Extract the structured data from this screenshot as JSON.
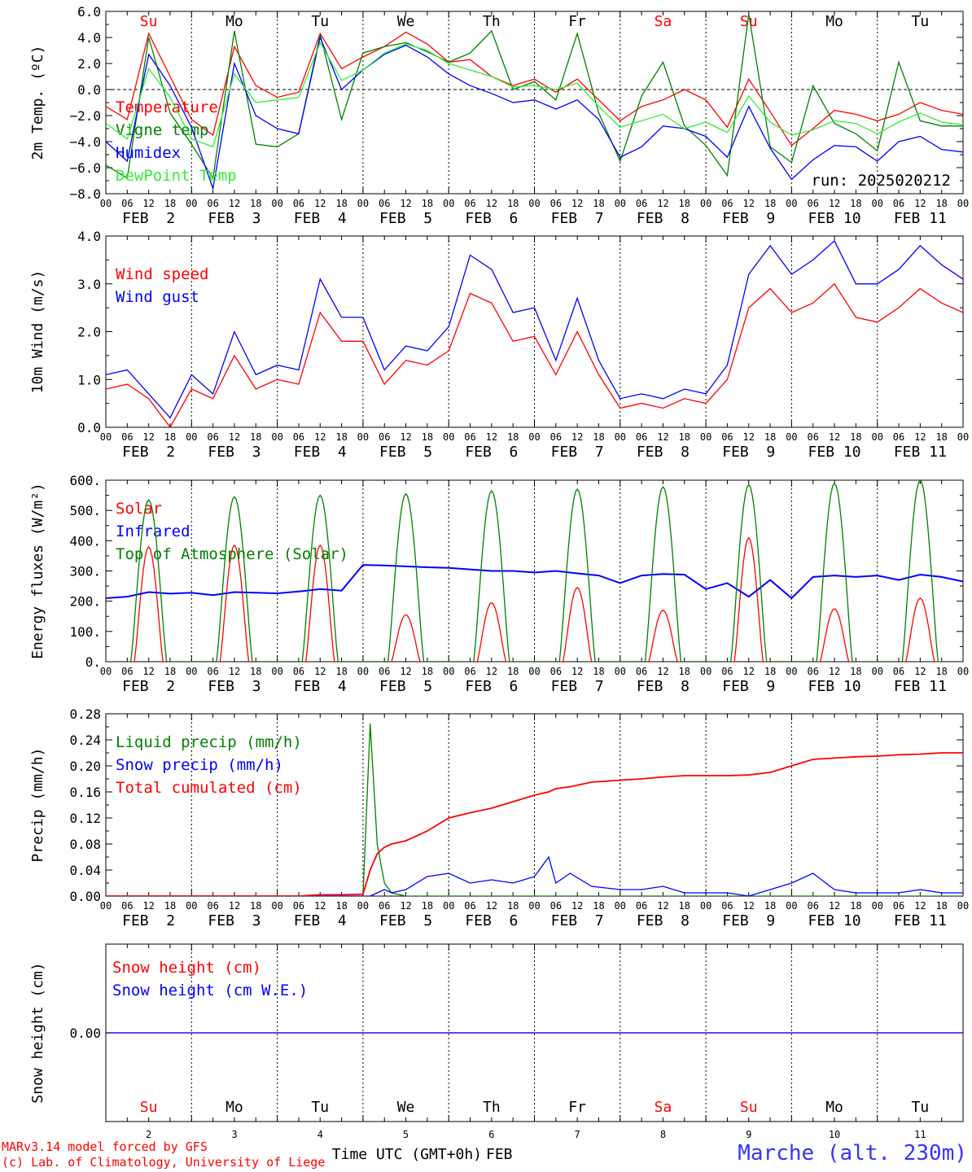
{
  "colors": {
    "red": "#ff0000",
    "green": "#008000",
    "blue": "#0000ff",
    "lightgreen": "#33ee33",
    "grid": "#000000"
  },
  "x_axis": {
    "hour_ticks": [
      "00",
      "06",
      "12",
      "18"
    ],
    "dates": [
      "FEB  2",
      "FEB  3",
      "FEB  4",
      "FEB  5",
      "FEB  6",
      "FEB  7",
      "FEB  8",
      "FEB  9",
      "FEB 10",
      "FEB 11"
    ],
    "day_numbers": [
      "2",
      "3",
      "4",
      "5",
      "6",
      "7",
      "8",
      "9",
      "10",
      "11"
    ],
    "day_names": [
      "Su",
      "Mo",
      "Tu",
      "We",
      "Th",
      "Fr",
      "Sa",
      "Su",
      "Mo",
      "Tu"
    ],
    "day_colors": [
      "#ff0000",
      "#000000",
      "#000000",
      "#000000",
      "#000000",
      "#000000",
      "#ff0000",
      "#ff0000",
      "#000000",
      "#000000"
    ],
    "xlabel": "Time UTC (GMT+0h)",
    "month": "FEB"
  },
  "footer": {
    "credit1": "MARv3.14 model forced by GFS",
    "credit2": "(c) Lab. of Climatology, University of Liege",
    "station": "Marche (alt. 230m)"
  },
  "chart_data": [
    {
      "id": "temp",
      "type": "line",
      "ylabel": "2m Temp. (ºC)",
      "ylim": [
        -8,
        6
      ],
      "yticks": [
        "6.0",
        "4.0",
        "2.0",
        "0.0",
        "−2.0",
        "−4.0",
        "−6.0",
        "−8.0"
      ],
      "annotation": "run: 2025020212",
      "x_hours": [
        0,
        6,
        12,
        18,
        24,
        30,
        36,
        42,
        48,
        54,
        60,
        66,
        72,
        78,
        84,
        90,
        96,
        102,
        108,
        114,
        120,
        126,
        132,
        138,
        144,
        150,
        156,
        162,
        168,
        174,
        180,
        186,
        192,
        198,
        204,
        210,
        216,
        222,
        228,
        234,
        240
      ],
      "series": [
        {
          "name": "Temperature",
          "color": "#ff0000",
          "values": [
            -1.3,
            -2.3,
            4.3,
            1.0,
            -2.3,
            -3.5,
            3.3,
            0.3,
            -0.6,
            -0.2,
            4.3,
            1.6,
            2.5,
            3.3,
            4.4,
            3.5,
            2.1,
            2.3,
            1.0,
            0.3,
            0.8,
            -0.2,
            0.8,
            -0.8,
            -2.4,
            -1.3,
            -0.8,
            0.0,
            -0.8,
            -2.9,
            0.8,
            -1.7,
            -4.3,
            -3.0,
            -1.6,
            -1.9,
            -2.4,
            -1.9,
            -1.0,
            -1.6,
            -1.9
          ]
        },
        {
          "name": "Vigne temp",
          "color": "#008000",
          "values": [
            -5.8,
            -6.8,
            4.0,
            -1.8,
            -4.2,
            -6.8,
            4.5,
            -4.2,
            -4.4,
            -3.4,
            4.2,
            -2.3,
            2.8,
            3.3,
            3.6,
            2.9,
            2.1,
            2.8,
            4.5,
            0.0,
            0.6,
            -0.8,
            4.3,
            -1.8,
            -5.5,
            -0.5,
            2.1,
            -2.8,
            -4.3,
            -6.6,
            5.8,
            -4.4,
            -5.6,
            0.3,
            -2.6,
            -3.4,
            -4.7,
            2.1,
            -2.4,
            -2.8,
            -2.8
          ]
        },
        {
          "name": "Humidex",
          "color": "#0000ff",
          "values": [
            -4.0,
            -5.5,
            2.7,
            0.3,
            -2.9,
            -7.6,
            2.0,
            -2.0,
            -3.0,
            -3.4,
            4.0,
            0.0,
            1.5,
            2.7,
            3.4,
            2.5,
            1.2,
            0.3,
            -0.3,
            -1.0,
            -0.8,
            -1.5,
            -0.8,
            -2.3,
            -5.2,
            -4.4,
            -2.8,
            -3.0,
            -3.6,
            -5.2,
            -1.3,
            -4.5,
            -6.9,
            -5.4,
            -4.3,
            -4.4,
            -5.5,
            -4.0,
            -3.6,
            -4.6,
            -4.8
          ]
        },
        {
          "name": "DewPoint Temp",
          "color": "#33ee33",
          "values": [
            -2.6,
            -3.8,
            1.6,
            -0.6,
            -3.8,
            -4.4,
            1.2,
            -1.0,
            -0.8,
            -0.6,
            3.6,
            0.7,
            1.5,
            2.8,
            3.5,
            3.0,
            2.0,
            1.5,
            1.0,
            0.2,
            0.3,
            0.0,
            0.5,
            -1.3,
            -2.9,
            -2.4,
            -1.9,
            -3.0,
            -2.5,
            -3.3,
            -0.5,
            -2.5,
            -3.5,
            -3.1,
            -2.4,
            -2.6,
            -3.4,
            -2.5,
            -1.8,
            -2.5,
            -2.7
          ]
        }
      ]
    },
    {
      "id": "wind",
      "type": "line",
      "ylabel": "10m Wind (m/s)",
      "ylim": [
        0,
        4
      ],
      "yticks": [
        "4.0",
        "3.0",
        "2.0",
        "1.0",
        "0.0"
      ],
      "x_hours": [
        0,
        6,
        12,
        18,
        24,
        30,
        36,
        42,
        48,
        54,
        60,
        66,
        72,
        78,
        84,
        90,
        96,
        102,
        108,
        114,
        120,
        126,
        132,
        138,
        144,
        150,
        156,
        162,
        168,
        174,
        180,
        186,
        192,
        198,
        204,
        210,
        216,
        222,
        228,
        234,
        240
      ],
      "series": [
        {
          "name": "Wind speed",
          "color": "#ff0000",
          "values": [
            0.8,
            0.9,
            0.6,
            0.0,
            0.8,
            0.6,
            1.5,
            0.8,
            1.0,
            0.9,
            2.4,
            1.8,
            1.8,
            0.9,
            1.4,
            1.3,
            1.6,
            2.8,
            2.6,
            1.8,
            1.9,
            1.1,
            2.0,
            1.1,
            0.4,
            0.5,
            0.4,
            0.6,
            0.5,
            1.0,
            2.5,
            2.9,
            2.4,
            2.6,
            3.0,
            2.3,
            2.2,
            2.5,
            2.9,
            2.6,
            2.4
          ]
        },
        {
          "name": "Wind gust",
          "color": "#0000ff",
          "values": [
            1.1,
            1.2,
            0.7,
            0.2,
            1.1,
            0.7,
            2.0,
            1.1,
            1.3,
            1.2,
            3.1,
            2.3,
            2.3,
            1.2,
            1.7,
            1.6,
            2.1,
            3.6,
            3.3,
            2.4,
            2.5,
            1.4,
            2.7,
            1.4,
            0.6,
            0.7,
            0.6,
            0.8,
            0.7,
            1.3,
            3.2,
            3.8,
            3.2,
            3.5,
            3.9,
            3.0,
            3.0,
            3.3,
            3.8,
            3.4,
            3.1
          ]
        }
      ]
    },
    {
      "id": "flux",
      "type": "line",
      "ylabel": "Energy fluxes (W/m²)",
      "ylim": [
        0,
        600
      ],
      "yticks": [
        "600.",
        "500.",
        "400.",
        "300.",
        "200.",
        "100.",
        "0."
      ],
      "x_hours": [
        0,
        6,
        12,
        18,
        24,
        30,
        36,
        42,
        48,
        54,
        60,
        66,
        72,
        78,
        84,
        90,
        96,
        102,
        108,
        114,
        120,
        126,
        132,
        138,
        144,
        150,
        156,
        162,
        168,
        174,
        180,
        186,
        192,
        198,
        204,
        210,
        216,
        222,
        228,
        234,
        240
      ],
      "solar_peaks": [
        380,
        385,
        385,
        155,
        195,
        245,
        170,
        410,
        175,
        210
      ],
      "toa_peaks": [
        535,
        545,
        550,
        555,
        565,
        570,
        578,
        585,
        590,
        600
      ],
      "series": [
        {
          "name": "Solar",
          "color": "#ff0000",
          "values": []
        },
        {
          "name": "Infrared",
          "color": "#0000ff",
          "values": [
            210,
            215,
            230,
            225,
            228,
            220,
            230,
            228,
            226,
            232,
            240,
            235,
            320,
            318,
            315,
            312,
            310,
            305,
            300,
            300,
            295,
            300,
            292,
            285,
            260,
            285,
            290,
            288,
            240,
            260,
            215,
            270,
            210,
            280,
            285,
            280,
            285,
            270,
            288,
            280,
            265
          ]
        },
        {
          "name": "Top of Atmosphere (Solar)",
          "color": "#008000",
          "values": []
        }
      ]
    },
    {
      "id": "precip",
      "type": "line",
      "ylabel": "Precip (mm/h)",
      "ylim": [
        0,
        0.28
      ],
      "yticks": [
        "0.28",
        "0.24",
        "0.20",
        "0.16",
        "0.12",
        "0.08",
        "0.04",
        "0.00"
      ],
      "x_hours": [
        0,
        6,
        12,
        18,
        24,
        30,
        36,
        42,
        48,
        54,
        60,
        66,
        72,
        74,
        76,
        78,
        80,
        84,
        90,
        96,
        102,
        108,
        114,
        120,
        124,
        126,
        130,
        136,
        144,
        150,
        156,
        162,
        168,
        174,
        180,
        186,
        192,
        198,
        204,
        210,
        216,
        222,
        228,
        234,
        240
      ],
      "series": [
        {
          "name": "Liquid precip (mm/h)",
          "color": "#008000",
          "values": [
            0,
            0,
            0,
            0,
            0,
            0,
            0,
            0,
            0,
            0,
            0,
            0,
            0,
            0.265,
            0.08,
            0.02,
            0.005,
            0,
            0,
            0,
            0,
            0,
            0,
            0,
            0,
            0,
            0,
            0,
            0,
            0,
            0,
            0,
            0,
            0,
            0,
            0,
            0,
            0,
            0,
            0,
            0,
            0,
            0,
            0,
            0
          ]
        },
        {
          "name": "Snow precip (mm/h)",
          "color": "#0000ff",
          "values": [
            0,
            0,
            0,
            0,
            0,
            0,
            0,
            0,
            0,
            0,
            0,
            0,
            0,
            0,
            0.005,
            0.01,
            0.005,
            0.01,
            0.03,
            0.035,
            0.02,
            0.025,
            0.02,
            0.03,
            0.06,
            0.02,
            0.035,
            0.015,
            0.01,
            0.01,
            0.015,
            0.005,
            0.005,
            0.005,
            0,
            0.01,
            0.02,
            0.035,
            0.01,
            0.005,
            0.005,
            0.005,
            0.01,
            0.005,
            0.005
          ]
        },
        {
          "name": "Total cumulated (cm)",
          "color": "#ff0000",
          "values": [
            0,
            0,
            0,
            0,
            0,
            0,
            0,
            0,
            0,
            0,
            0.002,
            0.002,
            0.003,
            0.04,
            0.065,
            0.075,
            0.08,
            0.085,
            0.1,
            0.12,
            0.128,
            0.135,
            0.145,
            0.155,
            0.16,
            0.165,
            0.168,
            0.175,
            0.178,
            0.18,
            0.183,
            0.185,
            0.185,
            0.185,
            0.186,
            0.19,
            0.2,
            0.21,
            0.212,
            0.214,
            0.215,
            0.217,
            0.218,
            0.22,
            0.22
          ]
        }
      ]
    },
    {
      "id": "snow",
      "type": "line",
      "ylabel": "Snow height (cm)",
      "ylim": [
        -1,
        1
      ],
      "yticks": [
        "0.00"
      ],
      "x_hours": [
        0,
        240
      ],
      "series": [
        {
          "name": "Snow height (cm)",
          "color": "#ff0000",
          "values": [
            0,
            0
          ]
        },
        {
          "name": "Snow height (cm W.E.)",
          "color": "#0000ff",
          "values": [
            0,
            0
          ]
        }
      ]
    }
  ]
}
